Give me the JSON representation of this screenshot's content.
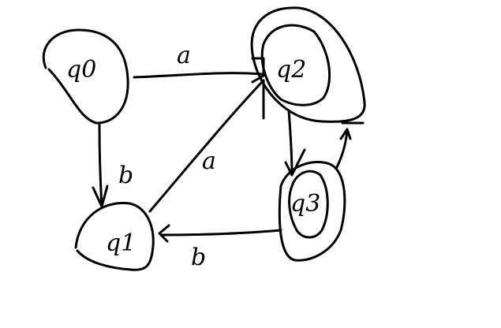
{
  "diagram": {
    "type": "finite-automaton",
    "states": [
      {
        "id": "q0",
        "label": "q0",
        "accepting": false
      },
      {
        "id": "q1",
        "label": "q1",
        "accepting": false
      },
      {
        "id": "q2",
        "label": "q2",
        "accepting": true
      },
      {
        "id": "q3",
        "label": "q3",
        "accepting": true
      }
    ],
    "transitions": [
      {
        "from": "q0",
        "to": "q2",
        "label": "a"
      },
      {
        "from": "q0",
        "to": "q1",
        "label": "b"
      },
      {
        "from": "q1",
        "to": "q2",
        "label": "a"
      },
      {
        "from": "q2",
        "to": "q3",
        "label": ""
      },
      {
        "from": "q3",
        "to": "q2",
        "label": ""
      },
      {
        "from": "q3",
        "to": "q1",
        "label": "b"
      }
    ]
  }
}
